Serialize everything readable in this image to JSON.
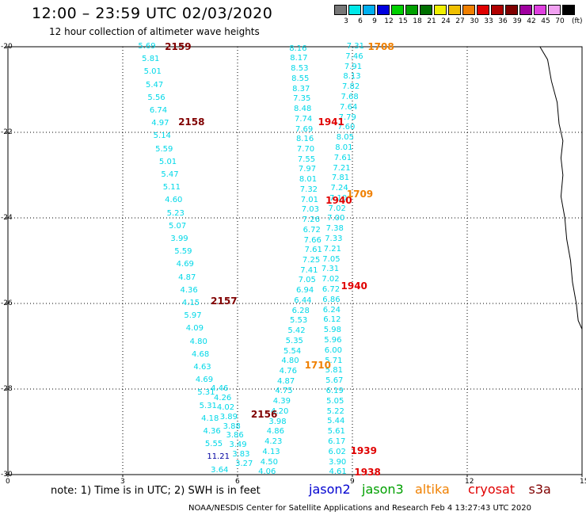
{
  "header": {
    "title": "12:00 – 23:59 UTC 02/03/2020",
    "subtitle": "12 hour collection of altimeter wave heights"
  },
  "colorbar": {
    "unit": "(ft)",
    "bins": [
      {
        "label": "3",
        "color": "#777777"
      },
      {
        "label": "6",
        "color": "#00e8e8"
      },
      {
        "label": "9",
        "color": "#00b0f0"
      },
      {
        "label": "12",
        "color": "#0000e0"
      },
      {
        "label": "15",
        "color": "#00d000"
      },
      {
        "label": "18",
        "color": "#00a000"
      },
      {
        "label": "21",
        "color": "#007000"
      },
      {
        "label": "24",
        "color": "#f0f000"
      },
      {
        "label": "27",
        "color": "#f0c000"
      },
      {
        "label": "30",
        "color": "#f08000"
      },
      {
        "label": "33",
        "color": "#e00000"
      },
      {
        "label": "36",
        "color": "#b00000"
      },
      {
        "label": "39",
        "color": "#800000"
      },
      {
        "label": "42",
        "color": "#a000a0"
      },
      {
        "label": "45",
        "color": "#e040e0"
      },
      {
        "label": "70",
        "color": "#f0a0f0"
      },
      {
        "label": "",
        "color": "#000000"
      }
    ]
  },
  "map": {
    "lon_range": [
      0,
      15
    ],
    "lat_range": [
      -30,
      -20
    ],
    "x_ticks": [
      "0",
      "3",
      "6",
      "9",
      "12",
      "15"
    ],
    "y_ticks": [
      "-20",
      "-22",
      "-24",
      "-26",
      "-28",
      "-30"
    ]
  },
  "tracks": [
    {
      "name": "track-2159",
      "color": "#00d8e8",
      "values": [
        {
          "lon": 3.4,
          "lat": -20.0,
          "v": "5.69"
        },
        {
          "lon": 3.5,
          "lat": -20.3,
          "v": "5.81"
        },
        {
          "lon": 3.55,
          "lat": -20.6,
          "v": "5.01"
        },
        {
          "lon": 3.6,
          "lat": -20.9,
          "v": "5.47"
        },
        {
          "lon": 3.65,
          "lat": -21.2,
          "v": "5.56"
        },
        {
          "lon": 3.7,
          "lat": -21.5,
          "v": "6.74"
        },
        {
          "lon": 3.75,
          "lat": -21.8,
          "v": "4.97"
        },
        {
          "lon": 3.8,
          "lat": -22.1,
          "v": "5.14"
        },
        {
          "lon": 3.85,
          "lat": -22.4,
          "v": "5.59"
        },
        {
          "lon": 3.95,
          "lat": -22.7,
          "v": "5.01"
        },
        {
          "lon": 4.0,
          "lat": -23.0,
          "v": "5.47"
        },
        {
          "lon": 4.05,
          "lat": -23.3,
          "v": "5.11"
        },
        {
          "lon": 4.1,
          "lat": -23.6,
          "v": "4.60"
        },
        {
          "lon": 4.15,
          "lat": -23.9,
          "v": "5.23"
        },
        {
          "lon": 4.2,
          "lat": -24.2,
          "v": "5.07"
        },
        {
          "lon": 4.25,
          "lat": -24.5,
          "v": "3.99"
        },
        {
          "lon": 4.35,
          "lat": -24.8,
          "v": "5.59"
        },
        {
          "lon": 4.4,
          "lat": -25.1,
          "v": "4.69"
        },
        {
          "lon": 4.45,
          "lat": -25.4,
          "v": "4.87"
        },
        {
          "lon": 4.5,
          "lat": -25.7,
          "v": "4.36"
        },
        {
          "lon": 4.55,
          "lat": -26.0,
          "v": "4.15"
        },
        {
          "lon": 4.6,
          "lat": -26.3,
          "v": "5.97"
        },
        {
          "lon": 4.65,
          "lat": -26.6,
          "v": "4.09"
        },
        {
          "lon": 4.75,
          "lat": -26.9,
          "v": "4.80"
        },
        {
          "lon": 4.8,
          "lat": -27.2,
          "v": "4.68"
        },
        {
          "lon": 4.85,
          "lat": -27.5,
          "v": "4.63"
        },
        {
          "lon": 4.9,
          "lat": -27.8,
          "v": "4.69"
        },
        {
          "lon": 4.95,
          "lat": -28.1,
          "v": "5.31"
        },
        {
          "lon": 5.0,
          "lat": -28.4,
          "v": "5.31"
        },
        {
          "lon": 5.05,
          "lat": -28.7,
          "v": "4.18"
        },
        {
          "lon": 5.1,
          "lat": -29.0,
          "v": "4.36"
        },
        {
          "lon": 5.15,
          "lat": -29.3,
          "v": "5.55"
        },
        {
          "lon": 5.2,
          "lat": -29.6,
          "v": "11.21",
          "color": "#0000a0"
        },
        {
          "lon": 5.3,
          "lat": -29.9,
          "v": "3.64"
        }
      ]
    }
  ],
  "pass_labels": [
    {
      "text": "2159",
      "lon": 4.1,
      "lat": -20.0,
      "color": "#800000"
    },
    {
      "text": "2158",
      "lon": 4.45,
      "lat": -21.75,
      "color": "#800000"
    },
    {
      "text": "2157",
      "lon": 5.3,
      "lat": -25.95,
      "color": "#800000"
    },
    {
      "text": "2156",
      "lon": 6.35,
      "lat": -28.6,
      "color": "#800000"
    },
    {
      "text": "1941",
      "lon": 8.1,
      "lat": -21.75,
      "color": "#e00000"
    },
    {
      "text": "1940",
      "lon": 8.3,
      "lat": -23.6,
      "color": "#e00000"
    },
    {
      "text": "1940",
      "lon": 8.7,
      "lat": -25.6,
      "color": "#e00000"
    },
    {
      "text": "1939",
      "lon": 8.95,
      "lat": -29.45,
      "color": "#e00000"
    },
    {
      "text": "1938",
      "lon": 9.05,
      "lat": -29.95,
      "color": "#e00000"
    },
    {
      "text": "1708",
      "lon": 9.4,
      "lat": -20.0,
      "color": "#f08000"
    },
    {
      "text": "1709",
      "lon": 8.85,
      "lat": -23.45,
      "color": "#f08000"
    },
    {
      "text": "1710",
      "lon": 7.75,
      "lat": -27.45,
      "color": "#f08000"
    }
  ],
  "extra_values": {
    "track_left_lower": [
      "4.46",
      "4.26",
      "4.02",
      "3.89",
      "3.88",
      "3.86",
      "3.49",
      "3.83",
      "3.27"
    ],
    "track_mid_left": [
      "8.16",
      "8.17",
      "8.53",
      "8.55",
      "8.37",
      "7.35",
      "8.48",
      "7.74",
      "7.69",
      "8.16",
      "7.70",
      "7.55",
      "7.97",
      "8.01",
      "7.32",
      "7.01",
      "7.03",
      "7.26",
      "6.72",
      "7.66",
      "7.61",
      "7.25",
      "7.41",
      "7.05",
      "6.94",
      "6.44",
      "6.28",
      "5.53",
      "5.42",
      "5.35",
      "5.54",
      "4.80",
      "4.76",
      "4.87",
      "4.75",
      "4.39",
      "4.20",
      "3.98",
      "4.86",
      "4.23",
      "4.13",
      "4.50",
      "4.06"
    ],
    "track_mid_right": [
      "7.31",
      "7.46",
      "7.91",
      "8.13",
      "7.82",
      "7.68",
      "7.64",
      "7.79",
      "7.60",
      "8.05",
      "8.01",
      "7.61",
      "7.21",
      "7.81",
      "7.24",
      "7.10",
      "7.02",
      "7.00",
      "7.38",
      "7.33",
      "7.21",
      "7.05",
      "7.31",
      "7.02",
      "6.72",
      "6.86",
      "6.24",
      "6.12",
      "5.98",
      "5.96",
      "6.00",
      "5.71",
      "5.81",
      "5.67",
      "6.19",
      "5.05",
      "5.22",
      "5.44",
      "5.61",
      "6.17",
      "6.02",
      "3.90",
      "4.61"
    ]
  },
  "note": "note: 1) Time is in UTC; 2) SWH is in feet",
  "missions": [
    {
      "name": "jason2",
      "color": "#0000d0"
    },
    {
      "name": "jason3",
      "color": "#00a000"
    },
    {
      "name": "altika",
      "color": "#f08000"
    },
    {
      "name": "cryosat",
      "color": "#e00000"
    },
    {
      "name": "s3a",
      "color": "#800000"
    }
  ],
  "footer": "NOAA/NESDIS Center for Satellite Applications and Research   Feb  4 13:27:43 UTC 2020"
}
